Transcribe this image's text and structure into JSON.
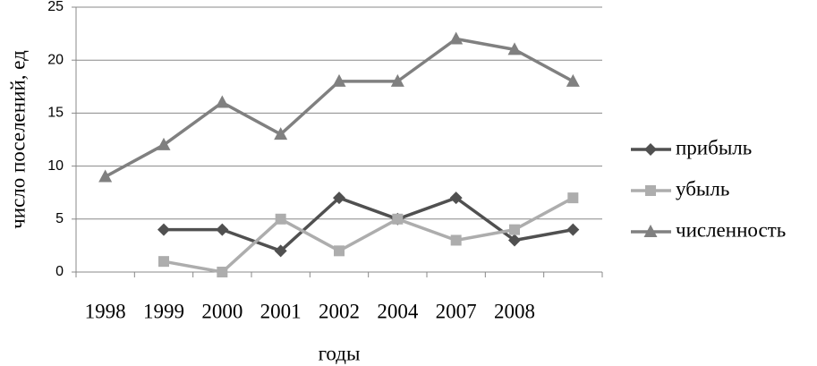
{
  "chart_data": {
    "type": "line",
    "x_label": "годы",
    "y_label": "число поселений, ед",
    "categories": [
      "1998",
      "1999",
      "2000",
      "2001",
      "2002",
      "2004",
      "2007",
      "2008",
      null
    ],
    "series": [
      {
        "name": "прибыль",
        "color": "#505050",
        "marker": "diamond",
        "values": [
          null,
          4,
          4,
          2,
          7,
          5,
          7,
          3,
          4
        ]
      },
      {
        "name": "убыль",
        "color": "#adadad",
        "marker": "square",
        "values": [
          null,
          1,
          0,
          5,
          2,
          5,
          3,
          4,
          7
        ]
      },
      {
        "name": "численность",
        "color": "#808080",
        "marker": "triangle",
        "values": [
          9,
          12,
          16,
          13,
          18,
          18,
          22,
          21,
          18
        ]
      }
    ],
    "ylim": [
      0,
      25
    ],
    "yticks": [
      0,
      5,
      10,
      15,
      20,
      25
    ],
    "grid": true,
    "legend": "right"
  }
}
